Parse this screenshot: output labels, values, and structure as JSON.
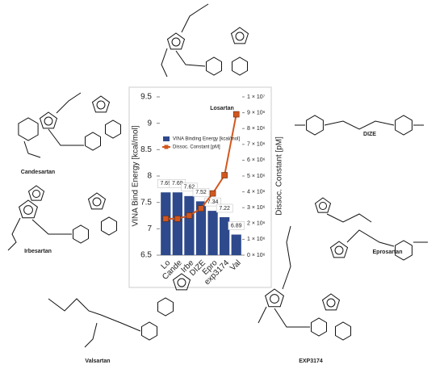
{
  "chart_data": {
    "type": "bar-line",
    "y_label": "VINA Bind Energy [kcal/mol]",
    "y2_label": "Dissoc. Constant [pM]",
    "categories": [
      "Lo",
      "Cande",
      "Irbe",
      "DIZE",
      "Epro",
      "exp3174",
      "Val"
    ],
    "series": [
      {
        "name": "VINA Binding Energy [kcal/mol]",
        "type": "bar",
        "color": "#2e4a8c",
        "values": [
          7.69,
          7.69,
          7.62,
          7.52,
          7.34,
          7.22,
          6.89
        ]
      },
      {
        "name": "Dissoc. Constant [pM]",
        "type": "line",
        "axis": "y2",
        "color": "#d2571e",
        "values": [
          2300000,
          2300000,
          2500000,
          2950000,
          3900000,
          5050000,
          8900000
        ]
      }
    ],
    "ylim": [
      6.5,
      9.5
    ],
    "yticks": [
      6.5,
      7,
      7.5,
      8,
      8.5,
      9,
      9.5
    ],
    "y2lim": [
      0,
      10000000
    ],
    "y2ticks": [
      {
        "value": 0,
        "label": "0 × 10⁶"
      },
      {
        "value": 1000000,
        "label": "1 × 10⁶"
      },
      {
        "value": 2000000,
        "label": "2 × 10⁶"
      },
      {
        "value": 3000000,
        "label": "3 × 10⁶"
      },
      {
        "value": 4000000,
        "label": "4 × 10⁶"
      },
      {
        "value": 5000000,
        "label": "5 × 10⁶"
      },
      {
        "value": 6000000,
        "label": "6 × 10⁶"
      },
      {
        "value": 7000000,
        "label": "7 × 10⁶"
      },
      {
        "value": 8000000,
        "label": "8 × 10⁶"
      },
      {
        "value": 9000000,
        "label": "9 × 10⁶"
      },
      {
        "value": 10000000,
        "label": "1 × 10⁷"
      }
    ],
    "grid": false,
    "legend": "upper-left"
  },
  "molecules": [
    "Losartan",
    "Candesartan",
    "Irbesartan",
    "Valsartan",
    "EXP3174",
    "Eprosartan",
    "DIZE"
  ]
}
